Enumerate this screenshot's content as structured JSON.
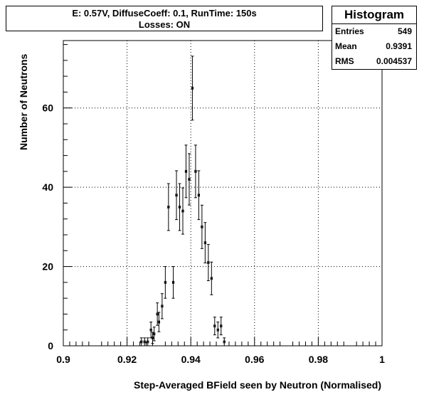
{
  "title_lines": [
    "E: 0.57V, DiffuseCoeff: 0.1, RunTime: 150s",
    "Losses: ON"
  ],
  "stats": {
    "name": "Histogram",
    "entries_label": "Entries",
    "entries_value": "549",
    "mean_label": "Mean",
    "mean_value": "0.9391",
    "rms_label": "RMS",
    "rms_value": "0.004537"
  },
  "chart_data": {
    "type": "scatter",
    "title": "E: 0.57V, DiffuseCoeff: 0.1, RunTime: 150s Losses: ON",
    "xlabel": "Step-Averaged BField seen by Neutron (Normalised)",
    "ylabel": "Number of Neutrons",
    "xlim": [
      0.9,
      1.0
    ],
    "ylim": [
      0,
      77
    ],
    "xticks": [
      0.9,
      0.92,
      0.94,
      0.96,
      0.98,
      1.0
    ],
    "xtick_labels": [
      "0.9",
      "0.92",
      "0.94",
      "0.96",
      "0.98",
      "1"
    ],
    "yticks": [
      0,
      20,
      40,
      60
    ],
    "ytick_labels": [
      "0",
      "20",
      "40",
      "60"
    ],
    "grid": true,
    "bin_width": 0.0005,
    "points": [
      {
        "x": 0.9245,
        "y": 1
      },
      {
        "x": 0.9255,
        "y": 1
      },
      {
        "x": 0.9265,
        "y": 1
      },
      {
        "x": 0.9275,
        "y": 4
      },
      {
        "x": 0.928,
        "y": 2
      },
      {
        "x": 0.9285,
        "y": 3
      },
      {
        "x": 0.9295,
        "y": 8
      },
      {
        "x": 0.93,
        "y": 6
      },
      {
        "x": 0.931,
        "y": 10
      },
      {
        "x": 0.932,
        "y": 16
      },
      {
        "x": 0.933,
        "y": 35
      },
      {
        "x": 0.9345,
        "y": 16
      },
      {
        "x": 0.9355,
        "y": 38
      },
      {
        "x": 0.9365,
        "y": 35
      },
      {
        "x": 0.9375,
        "y": 34
      },
      {
        "x": 0.9385,
        "y": 44
      },
      {
        "x": 0.9395,
        "y": 42
      },
      {
        "x": 0.9405,
        "y": 65
      },
      {
        "x": 0.9415,
        "y": 44
      },
      {
        "x": 0.9425,
        "y": 38
      },
      {
        "x": 0.9435,
        "y": 30
      },
      {
        "x": 0.9445,
        "y": 26
      },
      {
        "x": 0.9455,
        "y": 21
      },
      {
        "x": 0.9465,
        "y": 17
      },
      {
        "x": 0.9475,
        "y": 5
      },
      {
        "x": 0.9485,
        "y": 4
      },
      {
        "x": 0.9495,
        "y": 5
      },
      {
        "x": 0.9505,
        "y": 1
      }
    ]
  }
}
